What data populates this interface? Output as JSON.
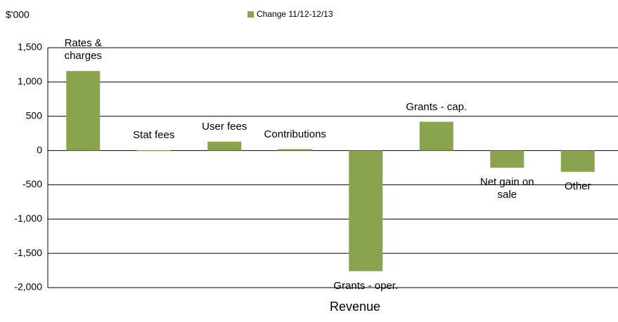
{
  "chart_data": {
    "type": "bar",
    "y_axis_label": "$'000",
    "x_axis_label": "Revenue",
    "categories": [
      "Rates & charges",
      "Stat fees",
      "User fees",
      "Contributions",
      "Grants - oper.",
      "Grants - cap.",
      "Net gain on sale",
      "Other"
    ],
    "series": [
      {
        "name": "Change 11/12-12/13",
        "color": "#8aa34f",
        "values": [
          1160,
          5,
          130,
          20,
          -1760,
          420,
          -250,
          -310
        ]
      }
    ],
    "ylim": [
      -2000,
      1500
    ],
    "yticks": [
      {
        "value": -2000,
        "label": "-2,000"
      },
      {
        "value": -1500,
        "label": "-1,500"
      },
      {
        "value": -1000,
        "label": "-1,000"
      },
      -500,
      0,
      500,
      {
        "value": 1000,
        "label": "1,000"
      },
      {
        "value": 1500,
        "label": "1,500"
      }
    ],
    "grid": true
  }
}
